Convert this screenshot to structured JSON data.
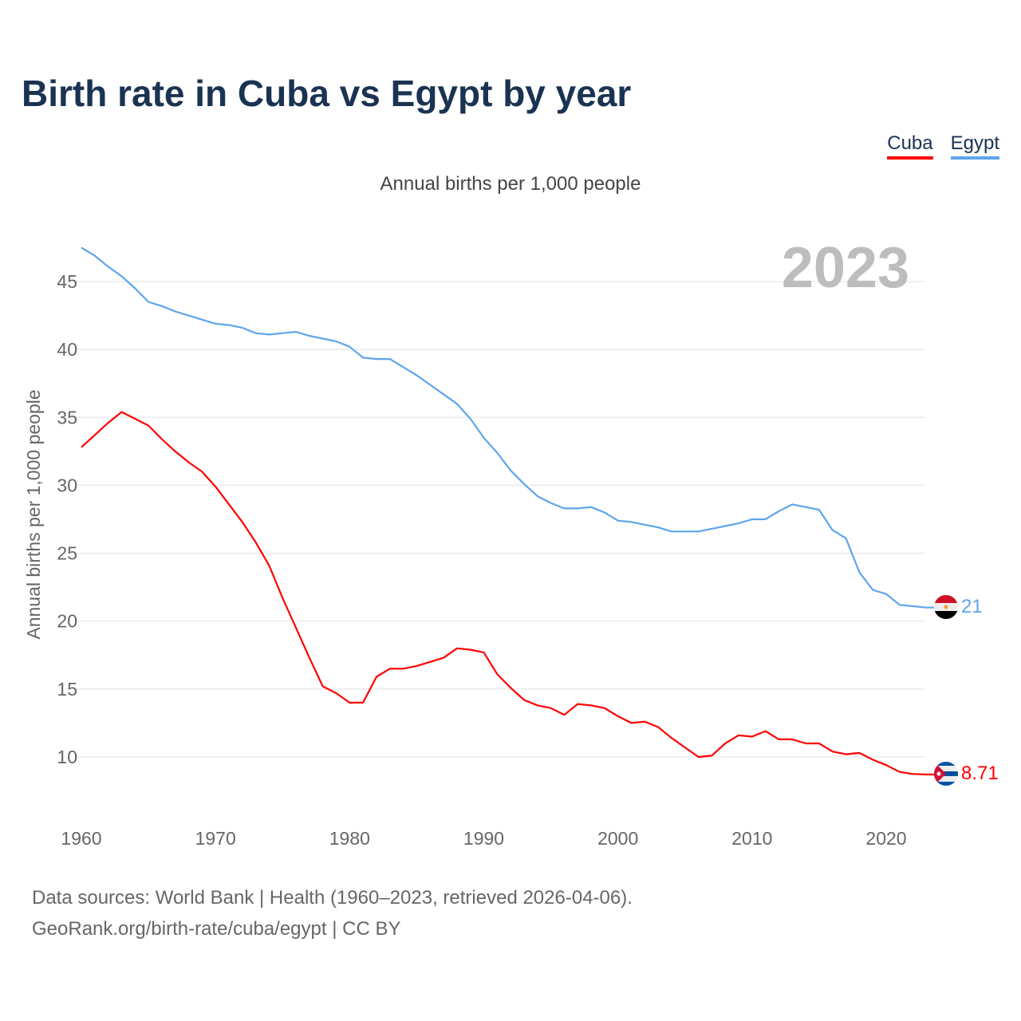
{
  "title": "Birth rate in Cuba vs Egypt by year",
  "subtitle": "Annual births per 1,000 people",
  "source_line1": "Data sources: World Bank | Health (1960–2023, retrieved 2026-04-06).",
  "source_line2": "GeoRank.org/birth-rate/cuba/egypt | CC BY",
  "year_label": "2023",
  "chart_data": {
    "type": "line",
    "title": "Birth rate in Cuba vs Egypt by year",
    "xlabel": "",
    "ylabel": "Annual births per 1,000 people",
    "xlim": [
      1960,
      2023
    ],
    "ylim": [
      6.5,
      48
    ],
    "x_ticks": [
      1960,
      1970,
      1980,
      1990,
      2000,
      2010,
      2020
    ],
    "y_ticks": [
      10,
      15,
      20,
      25,
      30,
      35,
      40,
      45
    ],
    "grid": true,
    "legend": "top-right",
    "x_start": 1960,
    "series": [
      {
        "name": "Cuba",
        "color": "#ff0000",
        "end_label": "8.71",
        "values": [
          32.8,
          33.7,
          34.6,
          35.4,
          34.9,
          34.4,
          33.4,
          32.5,
          31.7,
          31.0,
          29.9,
          28.6,
          27.3,
          25.8,
          24.1,
          21.7,
          19.5,
          17.3,
          15.2,
          14.7,
          14.0,
          14.0,
          15.9,
          16.5,
          16.5,
          16.7,
          17.0,
          17.3,
          18.0,
          17.9,
          17.7,
          16.1,
          15.1,
          14.2,
          13.8,
          13.6,
          13.1,
          13.9,
          13.8,
          13.6,
          13.0,
          12.5,
          12.6,
          12.2,
          11.4,
          10.7,
          10.0,
          10.1,
          11.0,
          11.6,
          11.5,
          11.9,
          11.3,
          11.3,
          11.0,
          11.0,
          10.4,
          10.2,
          10.3,
          9.8,
          9.4,
          8.9,
          8.75,
          8.71
        ]
      },
      {
        "name": "Egypt",
        "color": "#5ea5ec",
        "end_label": "21",
        "values": [
          47.5,
          46.9,
          46.1,
          45.4,
          44.5,
          43.5,
          43.2,
          42.8,
          42.5,
          42.2,
          41.9,
          41.8,
          41.6,
          41.2,
          41.1,
          41.2,
          41.3,
          41.0,
          40.8,
          40.6,
          40.2,
          39.4,
          39.3,
          39.3,
          38.7,
          38.1,
          37.4,
          36.7,
          36.0,
          34.9,
          33.5,
          32.4,
          31.1,
          30.1,
          29.2,
          28.7,
          28.3,
          28.3,
          28.4,
          28.0,
          27.4,
          27.3,
          27.1,
          26.9,
          26.6,
          26.6,
          26.6,
          26.8,
          27.0,
          27.2,
          27.5,
          27.5,
          28.1,
          28.6,
          28.4,
          28.2,
          26.7,
          26.1,
          23.6,
          22.3,
          22.0,
          21.2,
          21.1,
          21.0
        ]
      }
    ]
  }
}
